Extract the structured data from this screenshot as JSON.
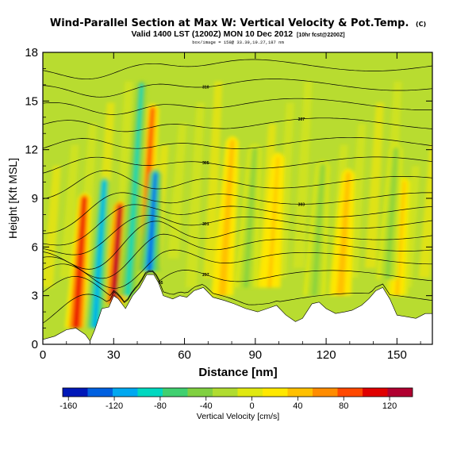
{
  "chart_data": {
    "type": "heatmap",
    "title": "Wind-Parallel Section at Max W: Vertical Velocity & Pot.Temp.",
    "title_tag": "(C)",
    "subtitle": "Valid 1400 LST (1200Z) MON 10 Dec 2012",
    "subtitle_tag": "[10hr fcst@2200Z]",
    "subtitle2": "box/image = 158@ 33.39,19.27,187 nm",
    "xlabel": "Distance [nm]",
    "ylabel": "Height [Kft MSL]",
    "xlim": [
      0,
      165
    ],
    "ylim": [
      0,
      18
    ],
    "xticks": [
      "0",
      "30",
      "60",
      "90",
      "120",
      "150"
    ],
    "yticks": [
      "0",
      "3",
      "6",
      "9",
      "12",
      "15",
      "18"
    ],
    "colorbar": {
      "label": "Vertical Velocity [cm/s]",
      "ticks": [
        "-160",
        "-120",
        "-80",
        "-40",
        "0",
        "40",
        "80",
        "120"
      ],
      "range": [
        -165,
        140
      ],
      "colors": [
        "#0018b8",
        "#0060e0",
        "#00a8f0",
        "#00d8c0",
        "#40d070",
        "#80d040",
        "#b0dc30",
        "#e0e810",
        "#ffe800",
        "#ffc000",
        "#ff8c00",
        "#ff4800",
        "#e00000",
        "#b00030"
      ]
    },
    "terrain_kft": [
      [
        0,
        0.3
      ],
      [
        5,
        0.5
      ],
      [
        10,
        0.9
      ],
      [
        14,
        1.0
      ],
      [
        18,
        0.6
      ],
      [
        20,
        0.2
      ],
      [
        22,
        0.9
      ],
      [
        25,
        2.2
      ],
      [
        28,
        2.3
      ],
      [
        30,
        3.0
      ],
      [
        32,
        2.8
      ],
      [
        35,
        2.2
      ],
      [
        38,
        3.0
      ],
      [
        41,
        3.5
      ],
      [
        44,
        4.3
      ],
      [
        47,
        4.3
      ],
      [
        49,
        3.8
      ],
      [
        51,
        3.0
      ],
      [
        55,
        2.8
      ],
      [
        58,
        3.0
      ],
      [
        61,
        2.9
      ],
      [
        64,
        3.3
      ],
      [
        68,
        3.5
      ],
      [
        72,
        2.9
      ],
      [
        77,
        2.7
      ],
      [
        81,
        2.5
      ],
      [
        86,
        2.2
      ],
      [
        91,
        2.0
      ],
      [
        95,
        2.2
      ],
      [
        99,
        2.4
      ],
      [
        103,
        1.8
      ],
      [
        107,
        1.4
      ],
      [
        110,
        1.6
      ],
      [
        114,
        2.5
      ],
      [
        117,
        2.6
      ],
      [
        120,
        2.2
      ],
      [
        124,
        1.9
      ],
      [
        128,
        2.0
      ],
      [
        131,
        2.1
      ],
      [
        135,
        2.4
      ],
      [
        138,
        2.8
      ],
      [
        141,
        3.3
      ],
      [
        144,
        3.5
      ],
      [
        147,
        2.8
      ],
      [
        150,
        1.8
      ],
      [
        154,
        1.7
      ],
      [
        158,
        1.6
      ],
      [
        162,
        1.9
      ],
      [
        165,
        1.9
      ]
    ],
    "updrafts": [
      {
        "x": 14,
        "bottom": 1.0,
        "top": 9.0,
        "peak": 110
      },
      {
        "x": 30,
        "bottom": 2.5,
        "top": 8.5,
        "peak": 140
      },
      {
        "x": 42,
        "bottom": 4.5,
        "top": 14.5,
        "peak": 95
      },
      {
        "x": 76,
        "bottom": 3.0,
        "top": 12.5,
        "peak": 45
      },
      {
        "x": 96,
        "bottom": 3.5,
        "top": 11.5,
        "peak": 40
      },
      {
        "x": 126,
        "bottom": 3.0,
        "top": 10.5,
        "peak": 45
      },
      {
        "x": 150,
        "bottom": 3.0,
        "top": 10.0,
        "peak": 35
      }
    ],
    "downdrafts": [
      {
        "x": 22,
        "bottom": 1.0,
        "top": 10.0,
        "peak": -120
      },
      {
        "x": 36,
        "bottom": 3.0,
        "top": 16.0,
        "peak": -90
      },
      {
        "x": 45,
        "bottom": 4.5,
        "top": 10.5,
        "peak": -140
      },
      {
        "x": 86,
        "bottom": 3.5,
        "top": 12.0,
        "peak": -45
      },
      {
        "x": 115,
        "bottom": 3.0,
        "top": 11.0,
        "peak": -45
      },
      {
        "x": 146,
        "bottom": 4.0,
        "top": 12.0,
        "peak": -40
      }
    ],
    "theta_contours": [
      {
        "base": 2.8,
        "label": "295"
      },
      {
        "base": 4.2,
        "label": "297"
      },
      {
        "base": 5.3,
        "label": ""
      },
      {
        "base": 6.1,
        "label": ""
      },
      {
        "base": 6.8,
        "label": ""
      },
      {
        "base": 7.5,
        "label": "301"
      },
      {
        "base": 8.2,
        "label": ""
      },
      {
        "base": 9.0,
        "label": "303"
      },
      {
        "base": 10.0,
        "label": ""
      },
      {
        "base": 11.2,
        "label": "305"
      },
      {
        "base": 12.4,
        "label": ""
      },
      {
        "base": 13.6,
        "label": "307"
      },
      {
        "base": 14.8,
        "label": ""
      },
      {
        "base": 16.0,
        "label": "310"
      },
      {
        "base": 17.2,
        "label": ""
      }
    ]
  }
}
